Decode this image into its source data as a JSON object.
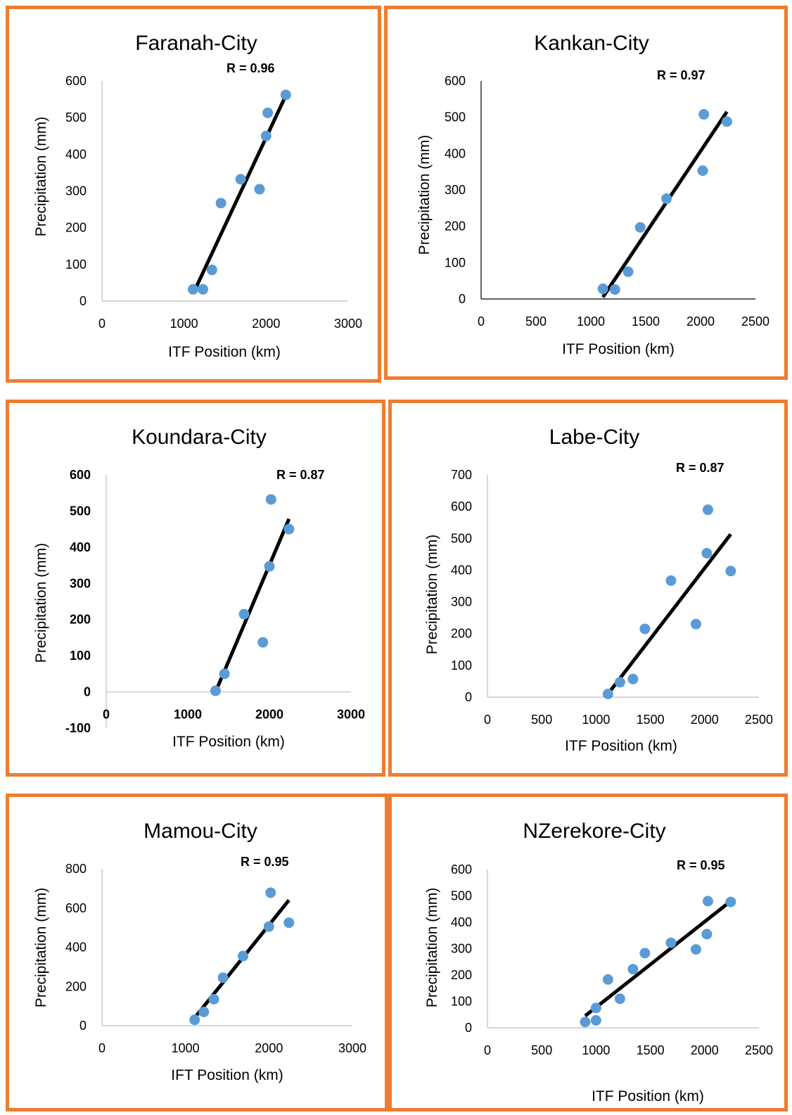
{
  "colors": {
    "frame": "#ED7D31",
    "points": "#5B9BD5",
    "trendline": "#000000"
  },
  "chart_data": [
    {
      "type": "scatter",
      "title": "Faranah-City",
      "xlabel": "ITF Position (km)",
      "ylabel": "Precipitation (mm)",
      "annotation": "R = 0.96",
      "xlim": [
        0,
        3000
      ],
      "ylim": [
        0,
        600
      ],
      "xticks": [
        0,
        1000,
        2000,
        3000
      ],
      "yticks": [
        0,
        100,
        200,
        300,
        400,
        500,
        600
      ],
      "grid": false,
      "bold_ticks": false,
      "points": [
        [
          1110,
          32
        ],
        [
          1230,
          32
        ],
        [
          1340,
          85
        ],
        [
          1450,
          267
        ],
        [
          1690,
          332
        ],
        [
          1920,
          305
        ],
        [
          2000,
          450
        ],
        [
          2020,
          513
        ],
        [
          2240,
          562
        ]
      ],
      "trendline": [
        [
          1110,
          20
        ],
        [
          2250,
          565
        ]
      ]
    },
    {
      "type": "scatter",
      "title": "Kankan-City",
      "xlabel": "ITF Position (km)",
      "ylabel": "Precipitation (mm)",
      "annotation": "R = 0.97",
      "xlim": [
        0,
        2500
      ],
      "ylim": [
        0,
        600
      ],
      "xticks": [
        0,
        500,
        1000,
        1500,
        2000,
        2500
      ],
      "yticks": [
        0,
        100,
        200,
        300,
        400,
        500,
        600
      ],
      "grid": false,
      "bold_ticks": false,
      "points": [
        [
          1110,
          28
        ],
        [
          1220,
          26
        ],
        [
          1340,
          75
        ],
        [
          1450,
          197
        ],
        [
          1690,
          276
        ],
        [
          2020,
          353
        ],
        [
          2030,
          508
        ],
        [
          2240,
          488
        ]
      ],
      "trendline": [
        [
          1110,
          5
        ],
        [
          2240,
          515
        ]
      ]
    },
    {
      "type": "scatter",
      "title": "Koundara-City",
      "xlabel": "ITF Position (km)",
      "ylabel": "Precipitation (mm)",
      "annotation": "R = 0.87",
      "xlim": [
        0,
        3000
      ],
      "ylim": [
        -100,
        600
      ],
      "xticks": [
        0,
        1000,
        2000,
        3000
      ],
      "yticks": [
        -100,
        0,
        100,
        200,
        300,
        400,
        500,
        600
      ],
      "grid": false,
      "bold_ticks": true,
      "points": [
        [
          1340,
          3
        ],
        [
          1450,
          50
        ],
        [
          1690,
          215
        ],
        [
          1920,
          137
        ],
        [
          2000,
          347
        ],
        [
          2020,
          532
        ],
        [
          2240,
          450
        ]
      ],
      "trendline": [
        [
          1340,
          0
        ],
        [
          2240,
          478
        ]
      ]
    },
    {
      "type": "scatter",
      "title": "Labe-City",
      "xlabel": "ITF Position (km)",
      "ylabel": "Precipitation (mm)",
      "annotation": "R = 0.87",
      "xlim": [
        0,
        2500
      ],
      "ylim": [
        0,
        700
      ],
      "xticks": [
        0,
        500,
        1000,
        1500,
        2000,
        2500
      ],
      "yticks": [
        0,
        100,
        200,
        300,
        400,
        500,
        600,
        700
      ],
      "grid": false,
      "bold_ticks": false,
      "points": [
        [
          1110,
          10
        ],
        [
          1220,
          47
        ],
        [
          1340,
          57
        ],
        [
          1450,
          215
        ],
        [
          1690,
          367
        ],
        [
          1920,
          230
        ],
        [
          2020,
          453
        ],
        [
          2030,
          590
        ],
        [
          2240,
          397
        ]
      ],
      "trendline": [
        [
          1110,
          10
        ],
        [
          2240,
          513
        ]
      ]
    },
    {
      "type": "scatter",
      "title": "Mamou-City",
      "xlabel": "IFT Position (km)",
      "ylabel": "Precipitation (mm)",
      "annotation": "R = 0.95",
      "xlim": [
        0,
        3000
      ],
      "ylim": [
        0,
        800
      ],
      "xticks": [
        0,
        1000,
        2000,
        3000
      ],
      "yticks": [
        0,
        200,
        400,
        600,
        800
      ],
      "grid": false,
      "bold_ticks": false,
      "points": [
        [
          1110,
          30
        ],
        [
          1220,
          70
        ],
        [
          1340,
          135
        ],
        [
          1450,
          245
        ],
        [
          1690,
          355
        ],
        [
          2000,
          505
        ],
        [
          2020,
          678
        ],
        [
          2240,
          525
        ]
      ],
      "trendline": [
        [
          1110,
          40
        ],
        [
          2240,
          640
        ]
      ]
    },
    {
      "type": "scatter",
      "title": "NZerekore-City",
      "xlabel": "ITF Position (km)",
      "ylabel": "Precipitation (mm)",
      "annotation": "R = 0.95",
      "xlim": [
        0,
        2500
      ],
      "ylim": [
        0,
        600
      ],
      "xticks": [
        0,
        500,
        1000,
        1500,
        2000,
        2500
      ],
      "yticks": [
        0,
        100,
        200,
        300,
        400,
        500,
        600
      ],
      "grid": false,
      "bold_ticks": false,
      "points": [
        [
          900,
          22
        ],
        [
          1000,
          28
        ],
        [
          1000,
          75
        ],
        [
          1110,
          183
        ],
        [
          1220,
          110
        ],
        [
          1340,
          222
        ],
        [
          1450,
          283
        ],
        [
          1690,
          322
        ],
        [
          1920,
          297
        ],
        [
          2020,
          355
        ],
        [
          2030,
          480
        ],
        [
          2240,
          477
        ]
      ],
      "trendline": [
        [
          900,
          45
        ],
        [
          2240,
          480
        ]
      ]
    }
  ]
}
